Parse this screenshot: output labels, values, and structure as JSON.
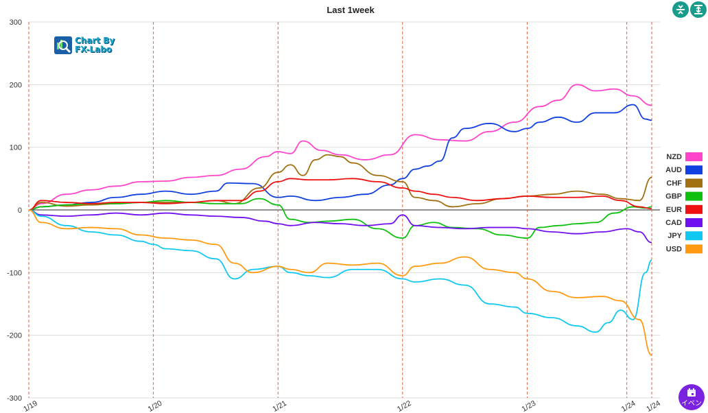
{
  "toolbar": {
    "compress_icon": "compress-vertical-icon",
    "expand_icon": "expand-vertical-icon",
    "event_button_label": "イベン",
    "event_icon": "calendar-icon"
  },
  "logo": {
    "line1": "Chart By",
    "line2": "FX-Labo"
  },
  "chart_data": {
    "type": "line",
    "title": "Last 1week",
    "ylim": [
      -300,
      300
    ],
    "yticks": [
      300,
      200,
      100,
      0,
      -100,
      -200,
      -300
    ],
    "x_range": [
      0,
      5
    ],
    "x_ticks": [
      {
        "label": "1/19",
        "pos": 0
      },
      {
        "label": "1/20",
        "pos": 1
      },
      {
        "label": "1/21",
        "pos": 2
      },
      {
        "label": "1/22",
        "pos": 3
      },
      {
        "label": "1/23",
        "pos": 4
      },
      {
        "label": "1/24",
        "pos": 4.8
      },
      {
        "label": "1/24",
        "pos": 5
      }
    ],
    "legend_position": "right",
    "grid": true,
    "series": [
      {
        "name": "NZD",
        "color": "#ff44cc",
        "points": [
          [
            0,
            0
          ],
          [
            0.1,
            10
          ],
          [
            0.3,
            25
          ],
          [
            0.5,
            32
          ],
          [
            0.7,
            38
          ],
          [
            0.9,
            45
          ],
          [
            1.1,
            46
          ],
          [
            1.3,
            52
          ],
          [
            1.5,
            55
          ],
          [
            1.7,
            65
          ],
          [
            1.9,
            85
          ],
          [
            2.0,
            93
          ],
          [
            2.1,
            90
          ],
          [
            2.2,
            110
          ],
          [
            2.35,
            95
          ],
          [
            2.5,
            88
          ],
          [
            2.7,
            80
          ],
          [
            2.9,
            88
          ],
          [
            3.1,
            120
          ],
          [
            3.3,
            112
          ],
          [
            3.5,
            110
          ],
          [
            3.7,
            125
          ],
          [
            3.9,
            140
          ],
          [
            4.1,
            165
          ],
          [
            4.25,
            175
          ],
          [
            4.4,
            200
          ],
          [
            4.55,
            190
          ],
          [
            4.7,
            193
          ],
          [
            4.85,
            182
          ],
          [
            5,
            167
          ]
        ]
      },
      {
        "name": "AUD",
        "color": "#1040e0",
        "points": [
          [
            0,
            0
          ],
          [
            0.1,
            5
          ],
          [
            0.3,
            8
          ],
          [
            0.5,
            12
          ],
          [
            0.7,
            20
          ],
          [
            0.9,
            25
          ],
          [
            1.1,
            30
          ],
          [
            1.3,
            25
          ],
          [
            1.5,
            30
          ],
          [
            1.6,
            43
          ],
          [
            1.8,
            42
          ],
          [
            2.0,
            20
          ],
          [
            2.1,
            22
          ],
          [
            2.3,
            15
          ],
          [
            2.5,
            20
          ],
          [
            2.7,
            25
          ],
          [
            2.9,
            40
          ],
          [
            3.0,
            50
          ],
          [
            3.1,
            65
          ],
          [
            3.2,
            70
          ],
          [
            3.3,
            78
          ],
          [
            3.4,
            115
          ],
          [
            3.5,
            130
          ],
          [
            3.7,
            138
          ],
          [
            3.9,
            125
          ],
          [
            4.0,
            130
          ],
          [
            4.1,
            140
          ],
          [
            4.25,
            148
          ],
          [
            4.4,
            140
          ],
          [
            4.55,
            155
          ],
          [
            4.7,
            155
          ],
          [
            4.85,
            168
          ],
          [
            4.95,
            145
          ],
          [
            5,
            143
          ]
        ]
      },
      {
        "name": "CHF",
        "color": "#a07010",
        "points": [
          [
            0,
            0
          ],
          [
            0.1,
            12
          ],
          [
            0.3,
            6
          ],
          [
            0.5,
            8
          ],
          [
            0.7,
            10
          ],
          [
            0.9,
            12
          ],
          [
            1.1,
            12
          ],
          [
            1.3,
            12
          ],
          [
            1.5,
            15
          ],
          [
            1.65,
            10
          ],
          [
            1.85,
            35
          ],
          [
            2.0,
            60
          ],
          [
            2.1,
            72
          ],
          [
            2.2,
            55
          ],
          [
            2.3,
            80
          ],
          [
            2.4,
            88
          ],
          [
            2.5,
            85
          ],
          [
            2.6,
            75
          ],
          [
            2.8,
            55
          ],
          [
            3.0,
            45
          ],
          [
            3.1,
            20
          ],
          [
            3.25,
            15
          ],
          [
            3.4,
            5
          ],
          [
            3.6,
            10
          ],
          [
            3.8,
            18
          ],
          [
            4.0,
            22
          ],
          [
            4.2,
            25
          ],
          [
            4.4,
            30
          ],
          [
            4.6,
            25
          ],
          [
            4.75,
            18
          ],
          [
            4.9,
            15
          ],
          [
            5,
            52
          ]
        ]
      },
      {
        "name": "GBP",
        "color": "#10c010",
        "points": [
          [
            0,
            0
          ],
          [
            0.1,
            5
          ],
          [
            0.3,
            8
          ],
          [
            0.5,
            10
          ],
          [
            0.7,
            10
          ],
          [
            0.9,
            12
          ],
          [
            1.1,
            15
          ],
          [
            1.3,
            12
          ],
          [
            1.5,
            10
          ],
          [
            1.7,
            10
          ],
          [
            1.85,
            18
          ],
          [
            2.0,
            8
          ],
          [
            2.1,
            -15
          ],
          [
            2.25,
            -20
          ],
          [
            2.4,
            -18
          ],
          [
            2.6,
            -15
          ],
          [
            2.8,
            -30
          ],
          [
            3.0,
            -45
          ],
          [
            3.1,
            -25
          ],
          [
            3.25,
            -20
          ],
          [
            3.4,
            -28
          ],
          [
            3.6,
            -30
          ],
          [
            3.8,
            -40
          ],
          [
            4.0,
            -45
          ],
          [
            4.1,
            -28
          ],
          [
            4.25,
            -25
          ],
          [
            4.4,
            -22
          ],
          [
            4.55,
            -20
          ],
          [
            4.7,
            -5
          ],
          [
            4.85,
            5
          ],
          [
            4.95,
            3
          ],
          [
            5,
            5
          ]
        ]
      },
      {
        "name": "EUR",
        "color": "#ee1010",
        "points": [
          [
            0,
            0
          ],
          [
            0.1,
            15
          ],
          [
            0.3,
            12
          ],
          [
            0.5,
            10
          ],
          [
            0.7,
            12
          ],
          [
            0.9,
            12
          ],
          [
            1.1,
            10
          ],
          [
            1.3,
            12
          ],
          [
            1.5,
            15
          ],
          [
            1.7,
            15
          ],
          [
            1.85,
            30
          ],
          [
            2.0,
            45
          ],
          [
            2.1,
            50
          ],
          [
            2.25,
            48
          ],
          [
            2.4,
            48
          ],
          [
            2.6,
            50
          ],
          [
            2.8,
            45
          ],
          [
            3.0,
            35
          ],
          [
            3.1,
            30
          ],
          [
            3.25,
            25
          ],
          [
            3.4,
            20
          ],
          [
            3.6,
            15
          ],
          [
            3.8,
            18
          ],
          [
            4.0,
            22
          ],
          [
            4.2,
            20
          ],
          [
            4.4,
            20
          ],
          [
            4.6,
            22
          ],
          [
            4.75,
            15
          ],
          [
            4.9,
            5
          ],
          [
            5,
            2
          ]
        ]
      },
      {
        "name": "CAD",
        "color": "#7010f0",
        "points": [
          [
            0,
            0
          ],
          [
            0.1,
            -8
          ],
          [
            0.3,
            -10
          ],
          [
            0.5,
            -8
          ],
          [
            0.7,
            -5
          ],
          [
            0.9,
            -8
          ],
          [
            1.1,
            -5
          ],
          [
            1.3,
            -8
          ],
          [
            1.5,
            -10
          ],
          [
            1.7,
            -12
          ],
          [
            1.9,
            -18
          ],
          [
            2.0,
            -22
          ],
          [
            2.1,
            -25
          ],
          [
            2.3,
            -20
          ],
          [
            2.5,
            -22
          ],
          [
            2.7,
            -25
          ],
          [
            2.9,
            -22
          ],
          [
            3.0,
            -8
          ],
          [
            3.1,
            -25
          ],
          [
            3.3,
            -28
          ],
          [
            3.5,
            -30
          ],
          [
            3.7,
            -28
          ],
          [
            3.9,
            -28
          ],
          [
            4.0,
            -30
          ],
          [
            4.2,
            -35
          ],
          [
            4.4,
            -38
          ],
          [
            4.6,
            -35
          ],
          [
            4.8,
            -30
          ],
          [
            4.9,
            -35
          ],
          [
            5,
            -52
          ]
        ]
      },
      {
        "name": "JPY",
        "color": "#10c8f0",
        "points": [
          [
            0,
            0
          ],
          [
            0.1,
            -10
          ],
          [
            0.3,
            -25
          ],
          [
            0.5,
            -35
          ],
          [
            0.7,
            -40
          ],
          [
            0.9,
            -50
          ],
          [
            1.0,
            -55
          ],
          [
            1.1,
            -62
          ],
          [
            1.3,
            -65
          ],
          [
            1.5,
            -78
          ],
          [
            1.65,
            -110
          ],
          [
            1.8,
            -95
          ],
          [
            2.0,
            -90
          ],
          [
            2.1,
            -100
          ],
          [
            2.25,
            -105
          ],
          [
            2.4,
            -108
          ],
          [
            2.6,
            -95
          ],
          [
            2.8,
            -95
          ],
          [
            3.0,
            -110
          ],
          [
            3.1,
            -115
          ],
          [
            3.3,
            -110
          ],
          [
            3.5,
            -120
          ],
          [
            3.7,
            -150
          ],
          [
            3.9,
            -155
          ],
          [
            4.0,
            -165
          ],
          [
            4.2,
            -172
          ],
          [
            4.4,
            -185
          ],
          [
            4.55,
            -195
          ],
          [
            4.65,
            -180
          ],
          [
            4.75,
            -160
          ],
          [
            4.85,
            -175
          ],
          [
            4.95,
            -100
          ],
          [
            5,
            -80
          ]
        ]
      },
      {
        "name": "USD",
        "color": "#ff9a10",
        "points": [
          [
            0,
            0
          ],
          [
            0.1,
            -20
          ],
          [
            0.3,
            -30
          ],
          [
            0.5,
            -28
          ],
          [
            0.7,
            -30
          ],
          [
            0.9,
            -40
          ],
          [
            1.1,
            -45
          ],
          [
            1.3,
            -48
          ],
          [
            1.5,
            -55
          ],
          [
            1.65,
            -85
          ],
          [
            1.8,
            -100
          ],
          [
            2.0,
            -90
          ],
          [
            2.1,
            -95
          ],
          [
            2.25,
            -100
          ],
          [
            2.4,
            -85
          ],
          [
            2.6,
            -88
          ],
          [
            2.8,
            -85
          ],
          [
            3.0,
            -105
          ],
          [
            3.1,
            -90
          ],
          [
            3.3,
            -85
          ],
          [
            3.5,
            -75
          ],
          [
            3.7,
            -95
          ],
          [
            3.9,
            -100
          ],
          [
            4.0,
            -110
          ],
          [
            4.2,
            -130
          ],
          [
            4.4,
            -140
          ],
          [
            4.6,
            -138
          ],
          [
            4.75,
            -145
          ],
          [
            4.9,
            -175
          ],
          [
            5,
            -232
          ]
        ]
      }
    ]
  }
}
